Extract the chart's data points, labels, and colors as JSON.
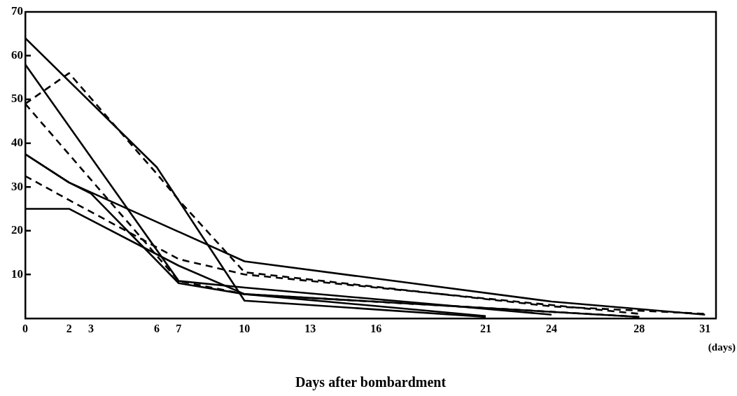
{
  "chart_data": {
    "type": "line",
    "xlabel": "Days after bombardment",
    "annotations": [
      "(days)"
    ],
    "xlim": [
      0,
      31.5
    ],
    "xticks": [
      0,
      2,
      3,
      6,
      7,
      10,
      13,
      16,
      21,
      24,
      28,
      31
    ],
    "ylim": [
      0,
      70
    ],
    "yticks": [
      10,
      20,
      30,
      40,
      50,
      60,
      70
    ],
    "grid": false,
    "legend": false,
    "marker": "none",
    "series": [
      {
        "color": "#000000",
        "line_style": "solid",
        "x": [
          0,
          6,
          10,
          13,
          21
        ],
        "values": [
          64,
          34.5,
          4,
          3,
          0.3
        ]
      },
      {
        "color": "#000000",
        "line_style": "dashed",
        "x": [
          0,
          2,
          6,
          7,
          10,
          24,
          31
        ],
        "values": [
          49,
          56,
          33,
          27,
          10.5,
          2.7,
          1
        ]
      },
      {
        "color": "#000000",
        "line_style": "solid",
        "x": [
          0,
          7,
          10,
          24
        ],
        "values": [
          58,
          8.5,
          7,
          0.8
        ]
      },
      {
        "color": "#000000",
        "line_style": "dashed",
        "x": [
          0,
          7,
          10,
          28
        ],
        "values": [
          49,
          8.5,
          5.5,
          0.3
        ]
      },
      {
        "color": "#000000",
        "line_style": "solid",
        "x": [
          0,
          2,
          3,
          7,
          10,
          28
        ],
        "values": [
          37.5,
          31,
          28.5,
          8,
          5.5,
          0.3
        ]
      },
      {
        "color": "#000000",
        "line_style": "dashed",
        "x": [
          0,
          2,
          7,
          10,
          28
        ],
        "values": [
          32.5,
          27,
          13.5,
          10,
          1
        ]
      },
      {
        "color": "#000000",
        "line_style": "solid",
        "x": [
          0,
          2,
          10,
          24,
          31
        ],
        "values": [
          37.5,
          31,
          13,
          3.8,
          0.8
        ]
      },
      {
        "color": "#000000",
        "line_style": "solid",
        "x": [
          0,
          2,
          7,
          10,
          21
        ],
        "values": [
          25,
          25,
          12,
          5.5,
          0.5
        ]
      }
    ]
  }
}
